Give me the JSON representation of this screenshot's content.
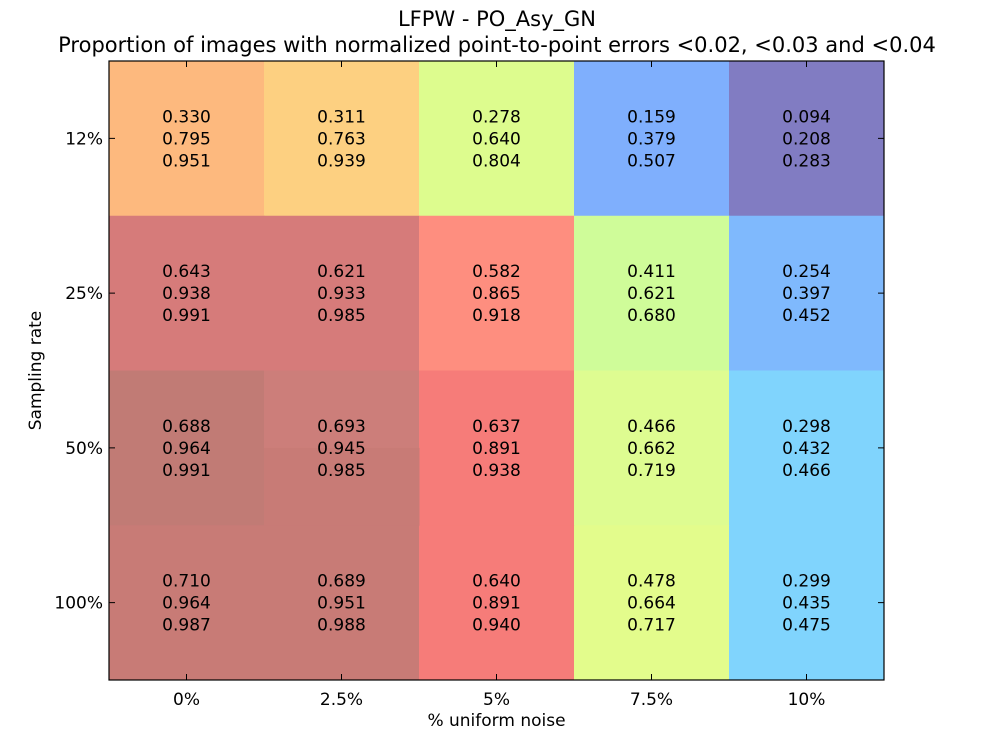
{
  "chart_data": {
    "type": "heatmap",
    "title": "LFPW - PO_Asy_GN",
    "subtitle": "Proportion of images with normalized point-to-point errors <0.02, <0.03 and <0.04",
    "xlabel": "% uniform noise",
    "ylabel": "Sampling rate",
    "x_categories": [
      "0%",
      "2.5%",
      "5%",
      "7.5%",
      "10%"
    ],
    "y_categories": [
      "12%",
      "25%",
      "50%",
      "100%"
    ],
    "thresholds": [
      "<0.02",
      "<0.03",
      "<0.04"
    ],
    "values": [
      [
        [
          0.33,
          0.795,
          0.951
        ],
        [
          0.311,
          0.763,
          0.939
        ],
        [
          0.278,
          0.64,
          0.804
        ],
        [
          0.159,
          0.379,
          0.507
        ],
        [
          0.094,
          0.208,
          0.283
        ]
      ],
      [
        [
          0.643,
          0.938,
          0.991
        ],
        [
          0.621,
          0.933,
          0.985
        ],
        [
          0.582,
          0.865,
          0.918
        ],
        [
          0.411,
          0.621,
          0.68
        ],
        [
          0.254,
          0.397,
          0.452
        ]
      ],
      [
        [
          0.688,
          0.964,
          0.991
        ],
        [
          0.693,
          0.945,
          0.985
        ],
        [
          0.637,
          0.891,
          0.938
        ],
        [
          0.466,
          0.662,
          0.719
        ],
        [
          0.298,
          0.432,
          0.466
        ]
      ],
      [
        [
          0.71,
          0.964,
          0.987
        ],
        [
          0.689,
          0.951,
          0.988
        ],
        [
          0.64,
          0.891,
          0.94
        ],
        [
          0.478,
          0.664,
          0.717
        ],
        [
          0.299,
          0.435,
          0.475
        ]
      ]
    ],
    "cell_colors": [
      [
        "#FDB97E",
        "#FDD081",
        "#DDFC8E",
        "#7FAFFD",
        "#817CC2"
      ],
      [
        "#D67B7A",
        "#D67B7A",
        "#FE8E7F",
        "#CFFC99",
        "#7FB9FD"
      ],
      [
        "#C17B75",
        "#CC7E7A",
        "#F67C79",
        "#DEFC91",
        "#80D4FD"
      ],
      [
        "#C87B76",
        "#C87B76",
        "#F67C79",
        "#E3FC8C",
        "#80D4FD"
      ]
    ],
    "sub_cells": [
      {
        "row": 2,
        "col": 1,
        "part": "bottom",
        "color": "#C87B76"
      }
    ],
    "grid": false
  }
}
